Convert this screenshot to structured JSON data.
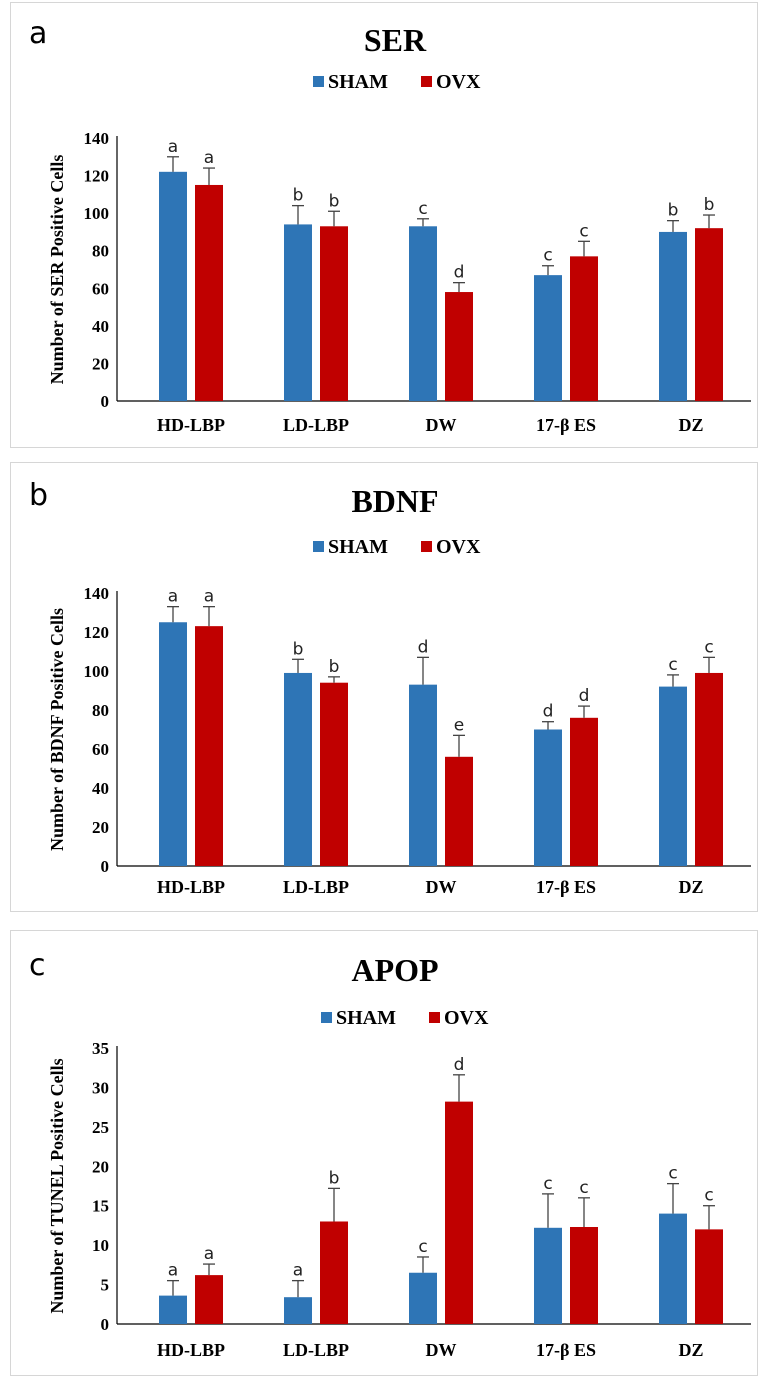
{
  "chart_data": [
    {
      "panel_label": "a",
      "type": "bar",
      "title": "SER",
      "xlabel": "",
      "ylabel": "Number of SER Positive Cells",
      "ylim": [
        0,
        140
      ],
      "yticks": [
        0,
        20,
        40,
        60,
        80,
        100,
        120,
        140
      ],
      "categories": [
        "HD-LBP",
        "LD-LBP",
        "DW",
        "17-β ES",
        "DZ"
      ],
      "legend_position": "top-center",
      "series": [
        {
          "name": "SHAM",
          "color": "#2e75b6",
          "values": [
            122,
            94,
            93,
            67,
            90
          ],
          "errors": [
            8,
            10,
            4,
            5,
            6
          ],
          "labels": [
            "a",
            "b",
            "c",
            "c",
            "b"
          ]
        },
        {
          "name": "OVX",
          "color": "#c00000",
          "values": [
            115,
            93,
            58,
            77,
            92
          ],
          "errors": [
            9,
            8,
            5,
            8,
            7
          ],
          "labels": [
            "a",
            "b",
            "d",
            "c",
            "b"
          ]
        }
      ]
    },
    {
      "panel_label": "b",
      "type": "bar",
      "title": "BDNF",
      "xlabel": "",
      "ylabel": "Number of BDNF Positive Cells",
      "ylim": [
        0,
        140
      ],
      "yticks": [
        0,
        20,
        40,
        60,
        80,
        100,
        120,
        140
      ],
      "categories": [
        "HD-LBP",
        "LD-LBP",
        "DW",
        "17-β ES",
        "DZ"
      ],
      "legend_position": "top-center",
      "series": [
        {
          "name": "SHAM",
          "color": "#2e75b6",
          "values": [
            125,
            99,
            93,
            70,
            92
          ],
          "errors": [
            8,
            7,
            14,
            4,
            6
          ],
          "labels": [
            "a",
            "b",
            "d",
            "d",
            "c"
          ]
        },
        {
          "name": "OVX",
          "color": "#c00000",
          "values": [
            123,
            94,
            56,
            76,
            99
          ],
          "errors": [
            10,
            3,
            11,
            6,
            8
          ],
          "labels": [
            "a",
            "b",
            "e",
            "d",
            "c"
          ]
        }
      ]
    },
    {
      "panel_label": "c",
      "type": "bar",
      "title": "APOP",
      "xlabel": "",
      "ylabel": "Number of TUNEL Positive Cells",
      "ylim": [
        0,
        35
      ],
      "yticks": [
        0,
        5,
        10,
        15,
        20,
        25,
        30,
        35
      ],
      "categories": [
        "HD-LBP",
        "LD-LBP",
        "DW",
        "17-β ES",
        "DZ"
      ],
      "legend_position": "top-center",
      "series": [
        {
          "name": "SHAM",
          "color": "#2e75b6",
          "values": [
            3.6,
            3.4,
            6.5,
            12.2,
            14
          ],
          "errors": [
            1.9,
            2.1,
            2,
            4.3,
            3.8
          ],
          "labels": [
            "a",
            "a",
            "c",
            "c",
            "c"
          ]
        },
        {
          "name": "OVX",
          "color": "#c00000",
          "values": [
            6.2,
            13,
            28.2,
            12.3,
            12
          ],
          "errors": [
            1.4,
            4.2,
            3.4,
            3.7,
            3
          ],
          "labels": [
            "a",
            "b",
            "d",
            "c",
            "c"
          ]
        }
      ]
    }
  ]
}
